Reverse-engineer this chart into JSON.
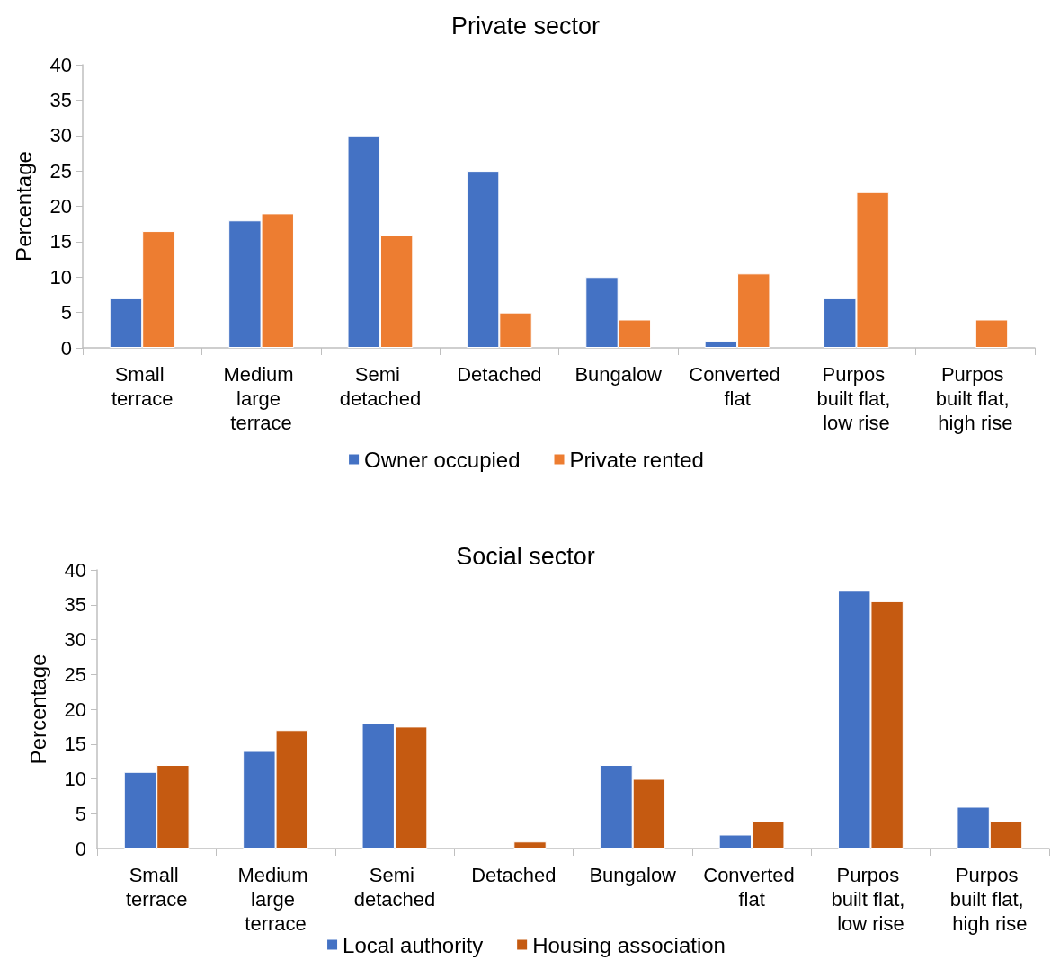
{
  "chart_data": [
    {
      "type": "bar",
      "title": "Private sector",
      "ylabel": "Percentage",
      "categories": [
        "Small terrace",
        "Medium large terrace",
        "Semi detached",
        "Detached",
        "Bungalow",
        "Converted flat",
        "Purpos built flat, low rise",
        "Purpos built flat, high rise"
      ],
      "series": [
        {
          "name": "Owner occupied",
          "color": "#4472c4",
          "values": [
            7,
            18,
            30,
            25,
            10,
            1,
            7,
            null
          ]
        },
        {
          "name": "Private rented",
          "color": "#ed7d31",
          "values": [
            16.5,
            19,
            16,
            5,
            4,
            10.5,
            22,
            4
          ]
        }
      ],
      "ylim": [
        0,
        40
      ],
      "yticks": [
        0,
        5,
        10,
        15,
        20,
        25,
        30,
        35,
        40
      ],
      "grid": false,
      "legend": "bottom"
    },
    {
      "type": "bar",
      "title": "Social sector",
      "ylabel": "Percentage",
      "categories": [
        "Small terrace",
        "Medium large terrace",
        "Semi detached",
        "Detached",
        "Bungalow",
        "Converted flat",
        "Purpos built flat, low rise",
        "Purpos built flat, high rise"
      ],
      "series": [
        {
          "name": "Local authority",
          "color": "#4472c4",
          "values": [
            11,
            14,
            18,
            null,
            12,
            2,
            37,
            6
          ]
        },
        {
          "name": "Housing association",
          "color": "#c55a11",
          "values": [
            12,
            17,
            17.5,
            1,
            10,
            4,
            35.5,
            4
          ]
        }
      ],
      "ylim": [
        0,
        40
      ],
      "yticks": [
        0,
        5,
        10,
        15,
        20,
        25,
        30,
        35,
        40
      ],
      "grid": false,
      "legend": "bottom"
    }
  ]
}
